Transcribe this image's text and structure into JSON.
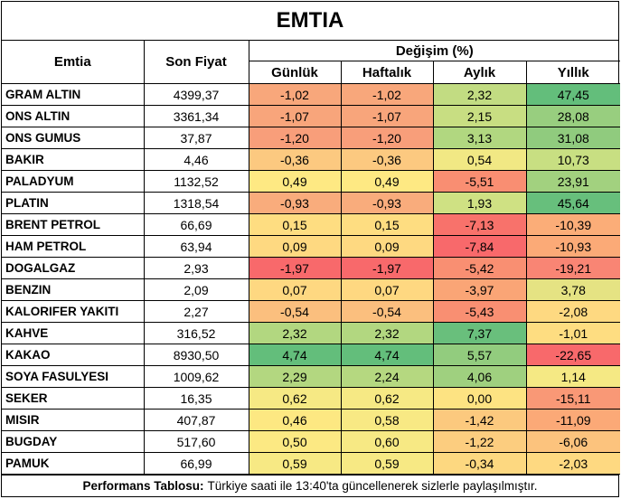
{
  "title": "EMTIA",
  "headers": {
    "emtia": "Emtia",
    "son_fiyat": "Son Fiyat",
    "degisim": "Değişim (%)",
    "gunluk": "Günlük",
    "haftalik": "Haftalık",
    "aylik": "Aylık",
    "yillik": "Yıllık"
  },
  "rows": [
    {
      "name": "GRAM ALTIN",
      "price": "4399,37",
      "gunluk": "-1,02",
      "haftalik": "-1,02",
      "aylik": "2,32",
      "yillik": "47,45",
      "colors": [
        "#f8a77b",
        "#f8a77b",
        "#c2dc82",
        "#63be7b"
      ]
    },
    {
      "name": "ONS ALTIN",
      "price": "3361,34",
      "gunluk": "-1,07",
      "haftalik": "-1,07",
      "aylik": "2,15",
      "yillik": "28,08",
      "colors": [
        "#f8a57b",
        "#f8a57b",
        "#c8de82",
        "#98ce7f"
      ]
    },
    {
      "name": "ONS GUMUS",
      "price": "37,87",
      "gunluk": "-1,20",
      "haftalik": "-1,20",
      "aylik": "3,13",
      "yillik": "31,08",
      "colors": [
        "#f89e7a",
        "#f89e7a",
        "#b1d780",
        "#90cb7e"
      ]
    },
    {
      "name": "BAKIR",
      "price": "4,46",
      "gunluk": "-0,36",
      "haftalik": "-0,36",
      "aylik": "0,54",
      "yillik": "10,73",
      "colors": [
        "#fcc980",
        "#fcc980",
        "#f1e884",
        "#c8df82"
      ]
    },
    {
      "name": "PALADYUM",
      "price": "1132,52",
      "gunluk": "0,49",
      "haftalik": "0,49",
      "aylik": "-5,51",
      "yillik": "23,91",
      "colors": [
        "#fee983",
        "#fee983",
        "#f98e72",
        "#a2d17f"
      ]
    },
    {
      "name": "PLATIN",
      "price": "1318,54",
      "gunluk": "-0,93",
      "haftalik": "-0,93",
      "aylik": "1,93",
      "yillik": "45,64",
      "colors": [
        "#f9ac7c",
        "#f9ac7c",
        "#cfe183",
        "#67bf7c"
      ]
    },
    {
      "name": "BRENT PETROL",
      "price": "66,69",
      "gunluk": "0,15",
      "haftalik": "0,15",
      "aylik": "-7,13",
      "yillik": "-10,39",
      "colors": [
        "#fedd81",
        "#fedd81",
        "#f8726b",
        "#fbad78"
      ]
    },
    {
      "name": "HAM PETROL",
      "price": "63,94",
      "gunluk": "0,09",
      "haftalik": "0,09",
      "aylik": "-7,84",
      "yillik": "-10,93",
      "colors": [
        "#fed981",
        "#fed981",
        "#f8696b",
        "#fbaa77"
      ]
    },
    {
      "name": "DOGALGAZ",
      "price": "2,93",
      "gunluk": "-1,97",
      "haftalik": "-1,97",
      "aylik": "-5,42",
      "yillik": "-19,21",
      "colors": [
        "#f8696b",
        "#f8696b",
        "#f98f72",
        "#f98574"
      ]
    },
    {
      "name": "BENZIN",
      "price": "2,09",
      "gunluk": "0,07",
      "haftalik": "0,07",
      "aylik": "-3,97",
      "yillik": "3,78",
      "colors": [
        "#fed881",
        "#fed881",
        "#faa576",
        "#e5e383"
      ]
    },
    {
      "name": "KALORIFER YAKITI",
      "price": "2,27",
      "gunluk": "-0,54",
      "haftalik": "-0,54",
      "aylik": "-5,43",
      "yillik": "-2,08",
      "colors": [
        "#fbbf7e",
        "#fbbf7e",
        "#f98f72",
        "#fed981"
      ]
    },
    {
      "name": "KAHVE",
      "price": "316,52",
      "gunluk": "2,32",
      "haftalik": "2,32",
      "aylik": "7,37",
      "yillik": "-1,01",
      "colors": [
        "#b2d780",
        "#b2d780",
        "#69bf7c",
        "#fedd81"
      ]
    },
    {
      "name": "KAKAO",
      "price": "8930,50",
      "gunluk": "4,74",
      "haftalik": "4,74",
      "aylik": "5,57",
      "yillik": "-22,65",
      "colors": [
        "#63be7b",
        "#63be7b",
        "#92cc7e",
        "#f8696b"
      ]
    },
    {
      "name": "SOYA FASULYESI",
      "price": "1009,62",
      "gunluk": "2,29",
      "haftalik": "2,24",
      "aylik": "4,06",
      "yillik": "1,14",
      "colors": [
        "#b3d780",
        "#b5d880",
        "#9fd07f",
        "#f5e984"
      ]
    },
    {
      "name": "SEKER",
      "price": "16,35",
      "gunluk": "0,62",
      "haftalik": "0,62",
      "aylik": "0,00",
      "yillik": "-15,11",
      "colors": [
        "#f6e984",
        "#f6e984",
        "#fde382",
        "#f99876"
      ]
    },
    {
      "name": "MISIR",
      "price": "407,87",
      "gunluk": "0,46",
      "haftalik": "0,58",
      "aylik": "-1,42",
      "yillik": "-11,09",
      "colors": [
        "#fde882",
        "#f8e984",
        "#fcc97e",
        "#fba977"
      ]
    },
    {
      "name": "BUGDAY",
      "price": "517,60",
      "gunluk": "0,50",
      "haftalik": "0,60",
      "aylik": "-1,22",
      "yillik": "-6,06",
      "colors": [
        "#fce983",
        "#f7e984",
        "#fccd7f",
        "#fcc37d"
      ]
    },
    {
      "name": "PAMUK",
      "price": "66,99",
      "gunluk": "0,59",
      "haftalik": "0,59",
      "aylik": "-0,34",
      "yillik": "-2,03",
      "colors": [
        "#f7e984",
        "#f7e984",
        "#fdd880",
        "#fed981"
      ]
    }
  ],
  "footer": {
    "label": "Performans Tablosu:",
    "text": "Türkiye saati ile 13:40'ta güncellenerek sizlerle paylaşılmıştır."
  }
}
